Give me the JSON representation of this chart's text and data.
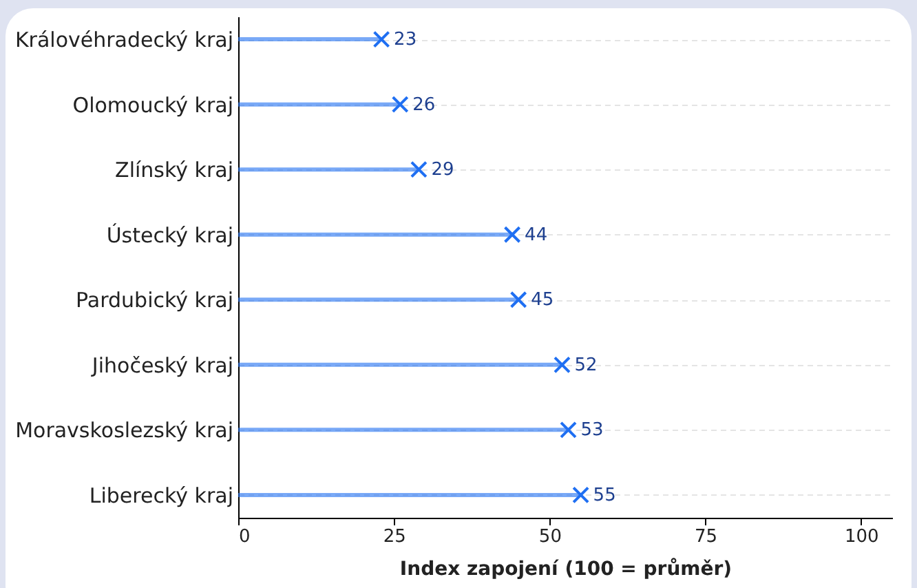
{
  "chart_data": {
    "type": "lollipop",
    "orientation": "horizontal",
    "xlabel": "Index zapojení (100 = průměr)",
    "categories": [
      "Královéhradecký kraj",
      "Olomoucký kraj",
      "Zlínský kraj",
      "Ústecký kraj",
      "Pardubický kraj",
      "Jihočeský kraj",
      "Moravskoslezský kraj",
      "Liberecký kraj"
    ],
    "series": [
      {
        "color": "#1f6ff2",
        "values": [
          23,
          26,
          29,
          44,
          45,
          52,
          53,
          55
        ]
      }
    ],
    "xlim": [
      0,
      105
    ],
    "xticks": [
      0,
      25,
      50,
      75,
      100
    ],
    "grid": "y",
    "marker": "cross",
    "data_labels": true
  }
}
